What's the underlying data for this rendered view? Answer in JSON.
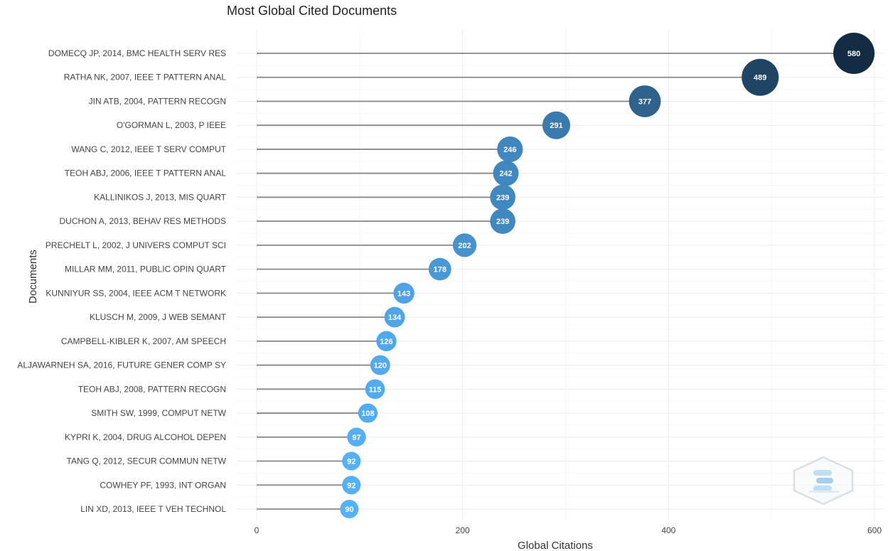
{
  "chart_data": {
    "type": "scatter",
    "title": "Most Global Cited Documents",
    "xlabel": "Global Citations",
    "ylabel": "Documents",
    "xlim": [
      0,
      600
    ],
    "xticks": [
      0,
      200,
      400,
      600
    ],
    "grid": true,
    "legend": "none",
    "categories": [
      "DOMECQ JP, 2014, BMC HEALTH SERV RES",
      "RATHA NK, 2007, IEEE T PATTERN ANAL",
      "JIN ATB, 2004, PATTERN RECOGN",
      "O'GORMAN L, 2003, P IEEE",
      "WANG C, 2012, IEEE T SERV COMPUT",
      "TEOH ABJ, 2006, IEEE T PATTERN ANAL",
      "KALLINIKOS J, 2013, MIS QUART",
      "DUCHON A, 2013, BEHAV RES METHODS",
      "PRECHELT L, 2002, J UNIVERS COMPUT SCI",
      "MILLAR MM, 2011, PUBLIC OPIN QUART",
      "KUNNIYUR SS, 2004, IEEE ACM T NETWORK",
      "KLUSCH M, 2009, J WEB SEMANT",
      "CAMPBELL-KIBLER K, 2007, AM SPEECH",
      "ALJAWARNEH SA, 2016, FUTURE GENER COMP SY",
      "TEOH ABJ, 2008, PATTERN RECOGN",
      "SMITH SW, 1999, COMPUT NETW",
      "KYPRI K, 2004, DRUG ALCOHOL DEPEN",
      "TANG Q, 2012, SECUR COMMUN NETW",
      "COWHEY PF, 1993, INT ORGAN",
      "LIN XD, 2013, IEEE T VEH TECHNOL"
    ],
    "values": [
      580,
      489,
      377,
      291,
      246,
      242,
      239,
      239,
      202,
      178,
      143,
      134,
      126,
      120,
      115,
      108,
      97,
      92,
      92,
      90
    ],
    "color_low": "#56B1F7",
    "color_high": "#132B43",
    "stem_color": "#888888"
  },
  "watermark": {
    "name": "bibliometrix-logo-icon"
  }
}
